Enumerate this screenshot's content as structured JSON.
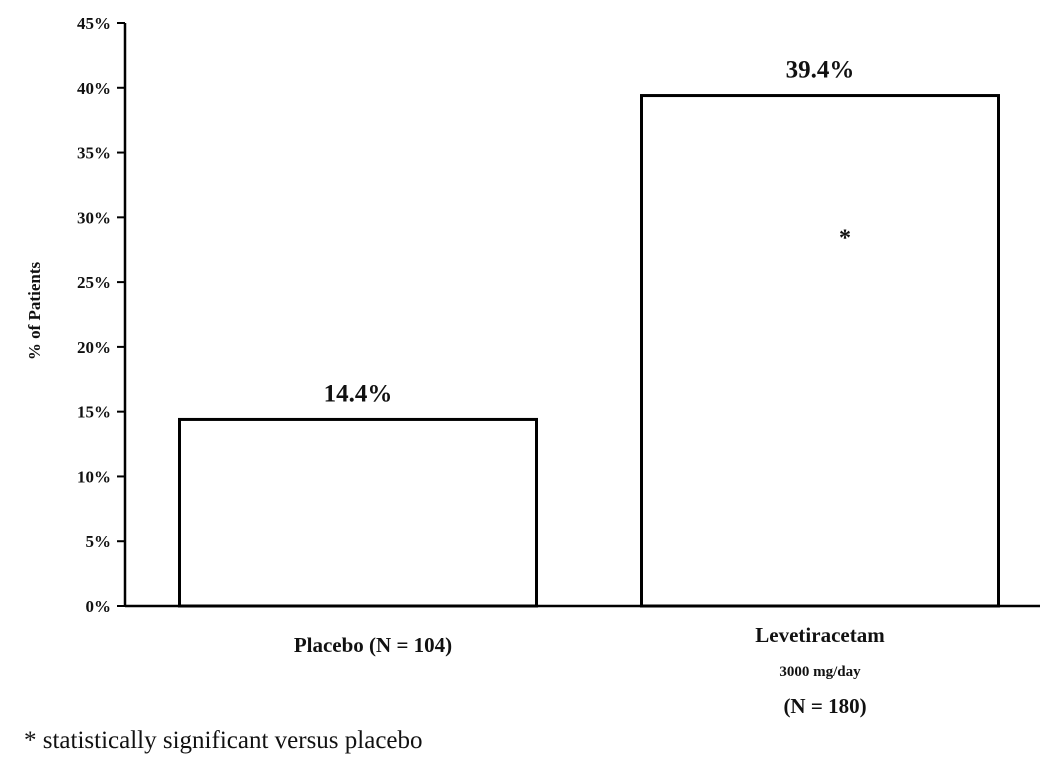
{
  "chart_data": {
    "type": "bar",
    "title": "",
    "xlabel": "",
    "ylabel": "% of Patients",
    "ylim": [
      0,
      45
    ],
    "yticks": [
      0,
      5,
      10,
      15,
      20,
      25,
      30,
      35,
      40,
      45
    ],
    "ytick_labels": [
      "0%",
      "5%",
      "10%",
      "15%",
      "20%",
      "25%",
      "30%",
      "35%",
      "40%",
      "45%"
    ],
    "grid": false,
    "legend": "none",
    "bar_fill": "#ffffff",
    "bar_stroke": "#000000",
    "categories": [
      {
        "name": "Placebo",
        "lines": [
          "Placebo (N = 104)"
        ]
      },
      {
        "name": "Levetiracetam 3000 mg/day",
        "lines": [
          "Levetiracetam",
          "3000 mg/day",
          "(N = 180)"
        ]
      }
    ],
    "values": [
      14.4,
      39.4
    ],
    "data_labels": [
      "14.4%",
      "39.4%"
    ],
    "annotations": [
      {
        "category": "Levetiracetam 3000 mg/day",
        "text": "*"
      }
    ],
    "footnote": "* statistically significant versus placebo"
  }
}
